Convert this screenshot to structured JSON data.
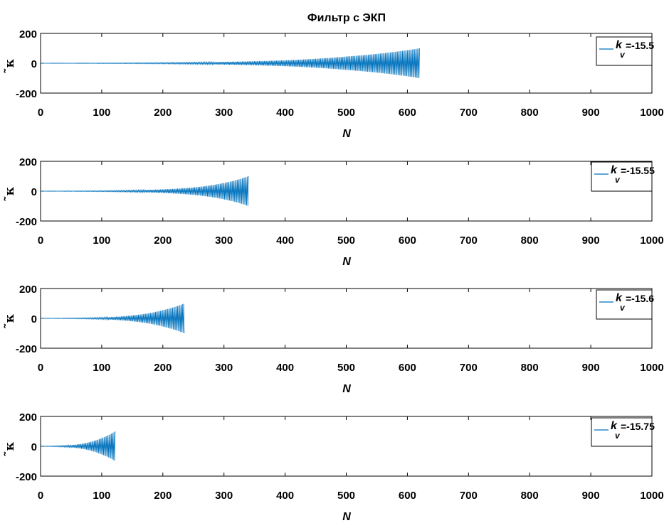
{
  "title": "Фильтр с ЭКП",
  "colors": {
    "series": "#0072BD",
    "axes": "#000000",
    "background": "#ffffff"
  },
  "chart_data": [
    {
      "type": "line",
      "xlabel": "N",
      "ylabel": "̃κ",
      "xlim": [
        0,
        1000
      ],
      "ylim": [
        -200,
        200
      ],
      "xticks": [
        "0",
        "100",
        "200",
        "300",
        "400",
        "500",
        "600",
        "700",
        "800",
        "900",
        "1000"
      ],
      "yticks": [
        "200",
        "0",
        "-200"
      ],
      "grid": false,
      "legend_position": "top-right",
      "legend": {
        "symbol": "k",
        "subscript": "v",
        "value": "=-15.5"
      },
      "series": [
        {
          "description": "oscillating signal with exponentially growing envelope",
          "envelope_x": [
            0,
            100,
            200,
            300,
            400,
            500,
            620
          ],
          "envelope_y": [
            1,
            2,
            4,
            9,
            20,
            45,
            100
          ],
          "x_end": 620
        }
      ]
    },
    {
      "type": "line",
      "xlabel": "N",
      "ylabel": "̃κ",
      "xlim": [
        0,
        1000
      ],
      "ylim": [
        -200,
        200
      ],
      "xticks": [
        "0",
        "100",
        "200",
        "300",
        "400",
        "500",
        "600",
        "700",
        "800",
        "900",
        "1000"
      ],
      "yticks": [
        "200",
        "0",
        "-200"
      ],
      "grid": false,
      "legend_position": "top-right",
      "legend": {
        "symbol": "k",
        "subscript": "v",
        "value": "=-15.55"
      },
      "series": [
        {
          "envelope_x": [
            0,
            100,
            200,
            250,
            300,
            340
          ],
          "envelope_y": [
            1,
            3,
            12,
            25,
            55,
            100
          ],
          "x_end": 340
        }
      ]
    },
    {
      "type": "line",
      "xlabel": "N",
      "ylabel": "̃κ",
      "xlim": [
        0,
        1000
      ],
      "ylim": [
        -200,
        200
      ],
      "xticks": [
        "0",
        "100",
        "200",
        "300",
        "400",
        "500",
        "600",
        "700",
        "800",
        "900",
        "1000"
      ],
      "yticks": [
        "200",
        "0",
        "-200"
      ],
      "grid": false,
      "legend_position": "top-right",
      "legend": {
        "symbol": "k",
        "subscript": "v",
        "value": "=-15.6"
      },
      "series": [
        {
          "envelope_x": [
            0,
            100,
            150,
            200,
            235
          ],
          "envelope_y": [
            1,
            6,
            20,
            55,
            100
          ],
          "x_end": 235
        }
      ]
    },
    {
      "type": "line",
      "xlabel": "N",
      "ylabel": "̃κ",
      "xlim": [
        0,
        1000
      ],
      "ylim": [
        -200,
        200
      ],
      "xticks": [
        "0",
        "100",
        "200",
        "300",
        "400",
        "500",
        "600",
        "700",
        "800",
        "900",
        "1000"
      ],
      "yticks": [
        "200",
        "0",
        "-200"
      ],
      "grid": false,
      "legend_position": "top-right",
      "legend": {
        "symbol": "k",
        "subscript": "v",
        "value": "=-15.75"
      },
      "series": [
        {
          "envelope_x": [
            0,
            50,
            80,
            100,
            122
          ],
          "envelope_y": [
            1,
            8,
            28,
            55,
            100
          ],
          "x_end": 122
        }
      ]
    }
  ]
}
